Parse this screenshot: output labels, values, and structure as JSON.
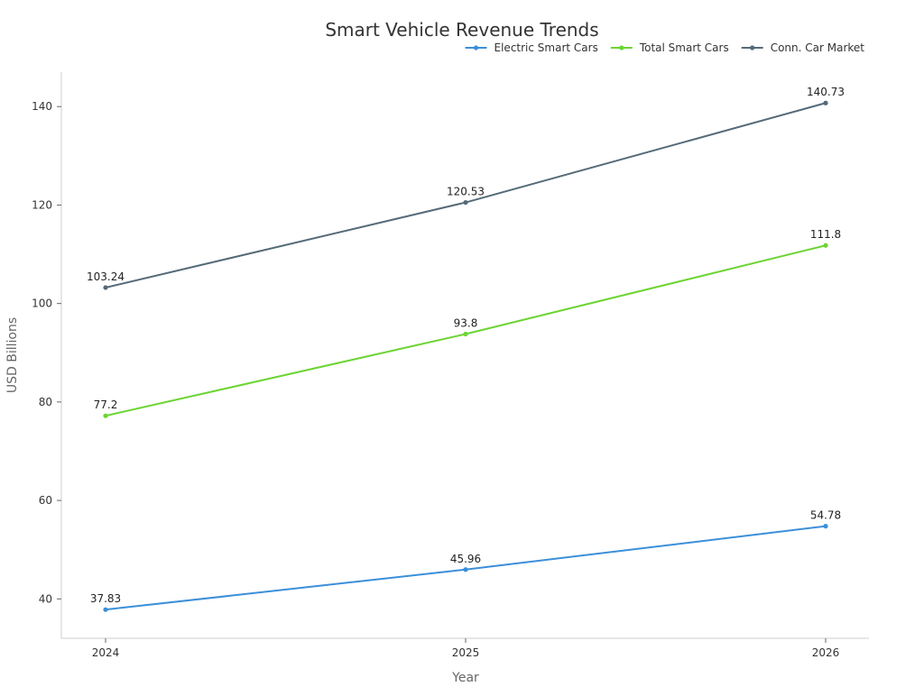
{
  "chart_data": {
    "type": "line",
    "title": "Smart Vehicle Revenue Trends",
    "xlabel": "Year",
    "ylabel": "USD Billions",
    "categories": [
      "2024",
      "2025",
      "2026"
    ],
    "ylim": [
      32,
      147
    ],
    "yticks": [
      40,
      60,
      80,
      100,
      120,
      140
    ],
    "grid": false,
    "legend_position": "top-right",
    "series": [
      {
        "name": "Electric Smart Cars",
        "color": "#3b8fd9",
        "values": [
          37.83,
          45.96,
          54.78
        ]
      },
      {
        "name": "Total Smart Cars",
        "color": "#6dd433",
        "values": [
          77.2,
          93.8,
          111.8
        ]
      },
      {
        "name": "Conn. Car Market",
        "color": "#546a78",
        "values": [
          103.24,
          120.53,
          140.73
        ]
      }
    ]
  }
}
